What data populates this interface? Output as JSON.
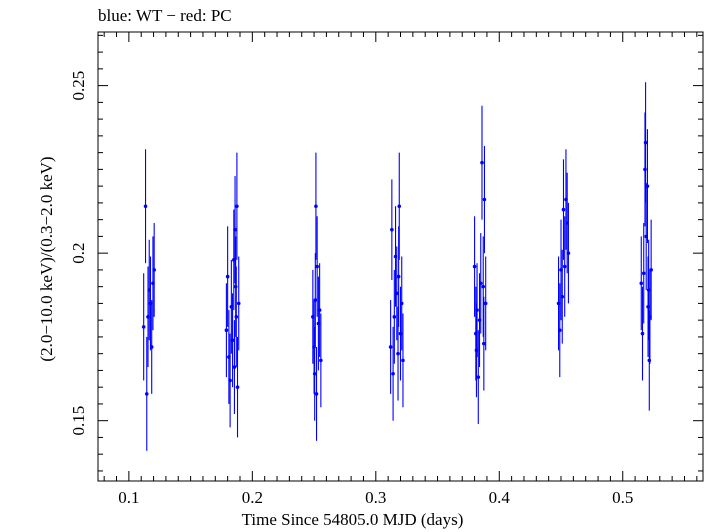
{
  "chart_data": {
    "type": "scatter",
    "title": "blue: WT − red: PC",
    "xlabel": "Time Since 54805.0 MJD (days)",
    "ylabel": "(2.0−10.0 keV)/(0.3−2.0 keV)",
    "xlim": [
      0.075,
      0.565
    ],
    "ylim": [
      0.132,
      0.266
    ],
    "xticks": [
      0.1,
      0.2,
      0.3,
      0.4,
      0.5
    ],
    "yticks": [
      0.15,
      0.2,
      0.25
    ],
    "xtick_labels": [
      "0.1",
      "0.2",
      "0.3",
      "0.4",
      "0.5"
    ],
    "ytick_labels": [
      "0.15",
      "0.2",
      "0.25"
    ],
    "grid": false,
    "series": [
      {
        "color": "#0000ff",
        "points": [
          {
            "x": 0.112,
            "y": 0.178,
            "err": 0.016
          },
          {
            "x": 0.1135,
            "y": 0.214,
            "err": 0.017
          },
          {
            "x": 0.1145,
            "y": 0.158,
            "err": 0.017
          },
          {
            "x": 0.1155,
            "y": 0.181,
            "err": 0.015
          },
          {
            "x": 0.1165,
            "y": 0.189,
            "err": 0.015
          },
          {
            "x": 0.1175,
            "y": 0.185,
            "err": 0.014
          },
          {
            "x": 0.1185,
            "y": 0.172,
            "err": 0.014
          },
          {
            "x": 0.1195,
            "y": 0.191,
            "err": 0.014
          },
          {
            "x": 0.1205,
            "y": 0.195,
            "err": 0.014
          },
          {
            "x": 0.179,
            "y": 0.177,
            "err": 0.014
          },
          {
            "x": 0.18,
            "y": 0.193,
            "err": 0.015
          },
          {
            "x": 0.181,
            "y": 0.169,
            "err": 0.014
          },
          {
            "x": 0.182,
            "y": 0.162,
            "err": 0.014
          },
          {
            "x": 0.183,
            "y": 0.184,
            "err": 0.014
          },
          {
            "x": 0.184,
            "y": 0.174,
            "err": 0.014
          },
          {
            "x": 0.185,
            "y": 0.198,
            "err": 0.015
          },
          {
            "x": 0.1855,
            "y": 0.166,
            "err": 0.014
          },
          {
            "x": 0.186,
            "y": 0.207,
            "err": 0.016
          },
          {
            "x": 0.1865,
            "y": 0.19,
            "err": 0.015
          },
          {
            "x": 0.187,
            "y": 0.181,
            "err": 0.015
          },
          {
            "x": 0.1875,
            "y": 0.214,
            "err": 0.016
          },
          {
            "x": 0.188,
            "y": 0.16,
            "err": 0.015
          },
          {
            "x": 0.189,
            "y": 0.185,
            "err": 0.014
          },
          {
            "x": 0.249,
            "y": 0.181,
            "err": 0.014
          },
          {
            "x": 0.25,
            "y": 0.172,
            "err": 0.014
          },
          {
            "x": 0.2505,
            "y": 0.164,
            "err": 0.014
          },
          {
            "x": 0.251,
            "y": 0.186,
            "err": 0.014
          },
          {
            "x": 0.2515,
            "y": 0.214,
            "err": 0.016
          },
          {
            "x": 0.252,
            "y": 0.158,
            "err": 0.014
          },
          {
            "x": 0.2525,
            "y": 0.196,
            "err": 0.015
          },
          {
            "x": 0.2535,
            "y": 0.179,
            "err": 0.014
          },
          {
            "x": 0.2545,
            "y": 0.183,
            "err": 0.014
          },
          {
            "x": 0.2555,
            "y": 0.168,
            "err": 0.014
          },
          {
            "x": 0.312,
            "y": 0.172,
            "err": 0.014
          },
          {
            "x": 0.313,
            "y": 0.207,
            "err": 0.015
          },
          {
            "x": 0.314,
            "y": 0.164,
            "err": 0.014
          },
          {
            "x": 0.315,
            "y": 0.181,
            "err": 0.014
          },
          {
            "x": 0.316,
            "y": 0.199,
            "err": 0.015
          },
          {
            "x": 0.317,
            "y": 0.188,
            "err": 0.014
          },
          {
            "x": 0.318,
            "y": 0.17,
            "err": 0.014
          },
          {
            "x": 0.3185,
            "y": 0.193,
            "err": 0.015
          },
          {
            "x": 0.319,
            "y": 0.214,
            "err": 0.016
          },
          {
            "x": 0.32,
            "y": 0.176,
            "err": 0.014
          },
          {
            "x": 0.321,
            "y": 0.185,
            "err": 0.014
          },
          {
            "x": 0.322,
            "y": 0.168,
            "err": 0.014
          },
          {
            "x": 0.38,
            "y": 0.196,
            "err": 0.015
          },
          {
            "x": 0.381,
            "y": 0.176,
            "err": 0.014
          },
          {
            "x": 0.3815,
            "y": 0.171,
            "err": 0.014
          },
          {
            "x": 0.382,
            "y": 0.183,
            "err": 0.014
          },
          {
            "x": 0.383,
            "y": 0.163,
            "err": 0.014
          },
          {
            "x": 0.384,
            "y": 0.18,
            "err": 0.014
          },
          {
            "x": 0.385,
            "y": 0.191,
            "err": 0.015
          },
          {
            "x": 0.386,
            "y": 0.227,
            "err": 0.017
          },
          {
            "x": 0.387,
            "y": 0.19,
            "err": 0.015
          },
          {
            "x": 0.3875,
            "y": 0.173,
            "err": 0.014
          },
          {
            "x": 0.388,
            "y": 0.216,
            "err": 0.016
          },
          {
            "x": 0.389,
            "y": 0.185,
            "err": 0.014
          },
          {
            "x": 0.448,
            "y": 0.185,
            "err": 0.014
          },
          {
            "x": 0.449,
            "y": 0.177,
            "err": 0.014
          },
          {
            "x": 0.45,
            "y": 0.195,
            "err": 0.015
          },
          {
            "x": 0.451,
            "y": 0.187,
            "err": 0.014
          },
          {
            "x": 0.452,
            "y": 0.213,
            "err": 0.015
          },
          {
            "x": 0.453,
            "y": 0.196,
            "err": 0.015
          },
          {
            "x": 0.454,
            "y": 0.216,
            "err": 0.015
          },
          {
            "x": 0.455,
            "y": 0.209,
            "err": 0.015
          },
          {
            "x": 0.456,
            "y": 0.2,
            "err": 0.015
          },
          {
            "x": 0.515,
            "y": 0.191,
            "err": 0.014
          },
          {
            "x": 0.516,
            "y": 0.176,
            "err": 0.014
          },
          {
            "x": 0.517,
            "y": 0.194,
            "err": 0.015
          },
          {
            "x": 0.518,
            "y": 0.225,
            "err": 0.017
          },
          {
            "x": 0.5185,
            "y": 0.233,
            "err": 0.018
          },
          {
            "x": 0.519,
            "y": 0.205,
            "err": 0.016
          },
          {
            "x": 0.52,
            "y": 0.22,
            "err": 0.017
          },
          {
            "x": 0.5205,
            "y": 0.184,
            "err": 0.015
          },
          {
            "x": 0.521,
            "y": 0.189,
            "err": 0.015
          },
          {
            "x": 0.5215,
            "y": 0.168,
            "err": 0.015
          },
          {
            "x": 0.522,
            "y": 0.181,
            "err": 0.014
          },
          {
            "x": 0.523,
            "y": 0.195,
            "err": 0.015
          }
        ]
      }
    ]
  }
}
